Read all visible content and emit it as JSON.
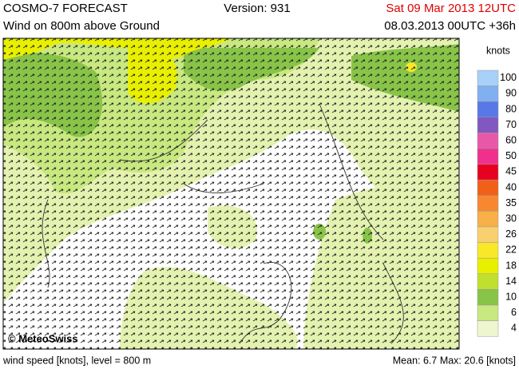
{
  "header": {
    "title": "COSMO-7 FORECAST",
    "version": "Version: 931",
    "valid_time": "Sat 09 Mar 2013 12UTC",
    "subtitle": "Wind on 800m above Ground",
    "run": "08.03.2013 00UTC +36h"
  },
  "map": {
    "credit": "© MeteoSwiss"
  },
  "legend": {
    "title": "knots",
    "levels": [
      {
        "label": "100",
        "color": "#a8d0f8"
      },
      {
        "label": "90",
        "color": "#80b0f0"
      },
      {
        "label": "80",
        "color": "#5878e8"
      },
      {
        "label": "70",
        "color": "#8058c0"
      },
      {
        "label": "60",
        "color": "#e858a8"
      },
      {
        "label": "50",
        "color": "#f0308c"
      },
      {
        "label": "45",
        "color": "#e80020"
      },
      {
        "label": "40",
        "color": "#f06018"
      },
      {
        "label": "35",
        "color": "#f88830"
      },
      {
        "label": "30",
        "color": "#f8b048"
      },
      {
        "label": "26",
        "color": "#f8d070"
      },
      {
        "label": "22",
        "color": "#f8e828"
      },
      {
        "label": "18",
        "color": "#e8f000"
      },
      {
        "label": "14",
        "color": "#c0e030"
      },
      {
        "label": "10",
        "color": "#88c448"
      },
      {
        "label": "6",
        "color": "#c8e880"
      },
      {
        "label": "4",
        "color": "#eef6d0"
      }
    ]
  },
  "footer": {
    "left": "wind speed [knots], level = 800 m",
    "right": "Mean:  6.7 Max:  20.6 [knots]"
  }
}
